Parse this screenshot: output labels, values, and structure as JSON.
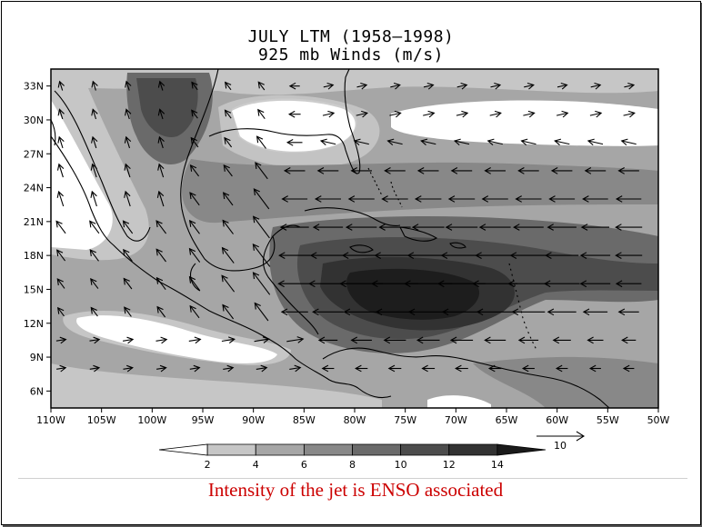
{
  "figure": {
    "title_line1": "JULY LTM (1958–1998)",
    "title_line2": "925 mb Winds (m/s)",
    "caption": "Intensity of the jet is ENSO associated"
  },
  "map": {
    "lon_range": [
      -110,
      -50
    ],
    "lat_range": [
      4.5,
      34.5
    ],
    "lat_ticks": [
      {
        "value": 33,
        "label": "33N"
      },
      {
        "value": 30,
        "label": "30N"
      },
      {
        "value": 27,
        "label": "27N"
      },
      {
        "value": 24,
        "label": "24N"
      },
      {
        "value": 21,
        "label": "21N"
      },
      {
        "value": 18,
        "label": "18N"
      },
      {
        "value": 15,
        "label": "15N"
      },
      {
        "value": 12,
        "label": "12N"
      },
      {
        "value": 9,
        "label": "9N"
      },
      {
        "value": 6,
        "label": "6N"
      }
    ],
    "lon_ticks": [
      {
        "value": -110,
        "label": "110W"
      },
      {
        "value": -105,
        "label": "105W"
      },
      {
        "value": -100,
        "label": "100W"
      },
      {
        "value": -95,
        "label": "95W"
      },
      {
        "value": -90,
        "label": "90W"
      },
      {
        "value": -85,
        "label": "85W"
      },
      {
        "value": -80,
        "label": "80W"
      },
      {
        "value": -75,
        "label": "75W"
      },
      {
        "value": -70,
        "label": "70W"
      },
      {
        "value": -65,
        "label": "65W"
      },
      {
        "value": -60,
        "label": "60W"
      },
      {
        "value": -55,
        "label": "55W"
      },
      {
        "value": -50,
        "label": "50W"
      }
    ],
    "shade_levels": [
      {
        "min": 0,
        "max": 2,
        "color": "#ffffff"
      },
      {
        "min": 2,
        "max": 4,
        "color": "#c6c6c6"
      },
      {
        "min": 4,
        "max": 6,
        "color": "#a6a6a6"
      },
      {
        "min": 6,
        "max": 8,
        "color": "#888888"
      },
      {
        "min": 8,
        "max": 10,
        "color": "#6a6a6a"
      },
      {
        "min": 10,
        "max": 12,
        "color": "#4c4c4c"
      },
      {
        "min": 12,
        "max": 14,
        "color": "#323232"
      },
      {
        "min": 14,
        "max": 16,
        "color": "#1a1a1a"
      }
    ],
    "colorbar_labels": [
      "2",
      "4",
      "6",
      "8",
      "10",
      "12",
      "14"
    ],
    "reference_vector": {
      "speed": 10,
      "label": "10"
    }
  }
}
